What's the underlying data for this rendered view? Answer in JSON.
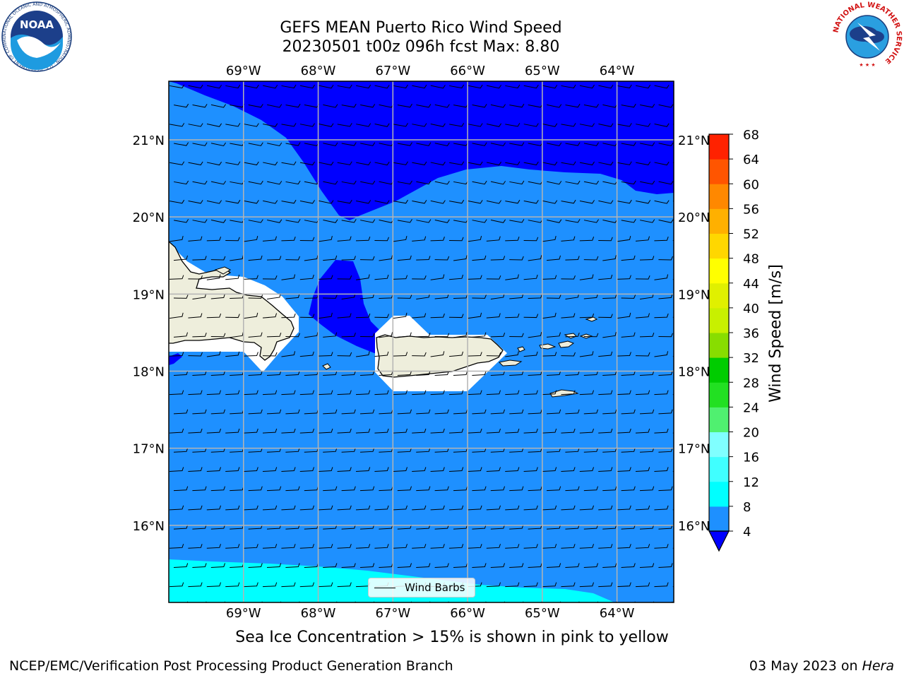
{
  "title": {
    "line1": "GEFS MEAN Puerto Rico Wind Speed",
    "line2": "20230501 t00z 096h fcst   Max: 8.80"
  },
  "map": {
    "lon_range": [
      -70.0,
      -63.24
    ],
    "lat_range": [
      15.0,
      21.76
    ],
    "lon_ticks": [
      -69,
      -68,
      -67,
      -66,
      -65,
      -64
    ],
    "lon_labels": [
      "69°W",
      "68°W",
      "67°W",
      "66°W",
      "65°W",
      "64°W"
    ],
    "lat_ticks": [
      16,
      17,
      18,
      19,
      20,
      21
    ],
    "lat_labels": [
      "16°N",
      "17°N",
      "18°N",
      "19°N",
      "20°N",
      "21°N"
    ],
    "land_color": "#eeeedc",
    "masked_color": "#ffffff",
    "grid": true
  },
  "colorbar": {
    "label": "Wind Speed [m/s]",
    "levels": [
      4,
      8,
      12,
      16,
      20,
      24,
      28,
      32,
      36,
      40,
      44,
      48,
      52,
      56,
      60,
      64,
      68
    ],
    "colors": [
      "#1e90ff",
      "#00ffff",
      "#40ffff",
      "#80ffff",
      "#50f070",
      "#22e022",
      "#00cc00",
      "#88dd00",
      "#c8f000",
      "#e0f000",
      "#ffff00",
      "#ffd700",
      "#ffb000",
      "#ff8800",
      "#ff5500",
      "#ff2200"
    ],
    "under_color": "#0000ff",
    "extend": "min"
  },
  "legend": {
    "label": "Wind Barbs"
  },
  "note": "Sea Ice Concentration > 15% is shown in pink to yellow",
  "footer": {
    "left": "NCEP/EMC/Verification Post Processing Product Generation Branch",
    "right_date": "03 May 2023 on ",
    "right_machine": "Hera"
  },
  "logos": {
    "noaa_text": "NOAA",
    "noaa_ring": "NATIONAL OCEANIC AND ATMOSPHERIC ADMINISTRATION · U.S. DEPARTMENT OF COMMERCE",
    "nws_ring": "NATIONAL WEATHER SERVICE"
  }
}
